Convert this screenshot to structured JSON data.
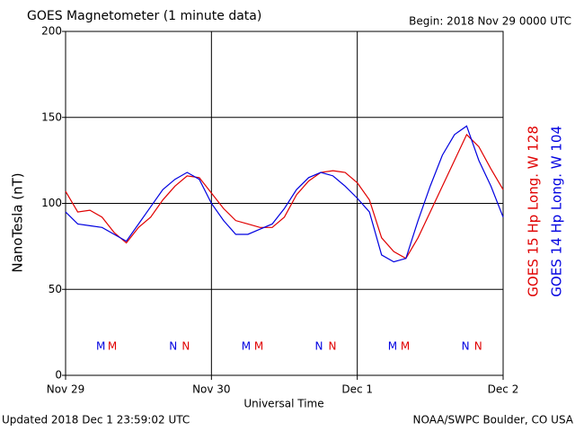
{
  "chart_data": {
    "type": "line",
    "title": "GOES Magnetometer (1 minute data)",
    "subtitle": "Begin:  2018 Nov 29 0000 UTC",
    "ylabel": "NanoTesla (nT)",
    "xlabel": "Universal Time",
    "footer_left": "Updated 2018 Dec  1 23:59:02 UTC",
    "footer_right": "NOAA/SWPC Boulder, CO USA",
    "xlim": [
      0,
      72
    ],
    "xticks": [
      {
        "value": 0,
        "label": "Nov 29"
      },
      {
        "value": 24,
        "label": "Nov 30"
      },
      {
        "value": 48,
        "label": "Dec 1"
      },
      {
        "value": 72,
        "label": "Dec 2"
      }
    ],
    "ylim": [
      0,
      200
    ],
    "yticks": [
      0,
      50,
      100,
      150,
      200
    ],
    "grid": true,
    "x": [
      0,
      2,
      4,
      6,
      8,
      10,
      12,
      14,
      16,
      18,
      20,
      22,
      24,
      26,
      28,
      30,
      32,
      34,
      36,
      38,
      40,
      42,
      44,
      46,
      48,
      50,
      52,
      54,
      56,
      58,
      60,
      62,
      64,
      66,
      68,
      70,
      72
    ],
    "series": [
      {
        "name": "GOES 15 Hp  Long. W 128",
        "color": "#e00000",
        "values": [
          107,
          95,
          96,
          92,
          83,
          77,
          86,
          92,
          102,
          110,
          116,
          115,
          106,
          97,
          90,
          88,
          86,
          86,
          92,
          105,
          113,
          118,
          119,
          118,
          112,
          102,
          80,
          72,
          68,
          80,
          95,
          110,
          125,
          140,
          133,
          120,
          108
        ]
      },
      {
        "name": "GOES 14 Hp  Long. W 104",
        "color": "#0000e0",
        "values": [
          95,
          88,
          87,
          86,
          82,
          78,
          88,
          98,
          108,
          114,
          118,
          114,
          100,
          90,
          82,
          82,
          85,
          88,
          97,
          108,
          115,
          118,
          116,
          110,
          103,
          95,
          70,
          66,
          68,
          90,
          110,
          128,
          140,
          145,
          125,
          110,
          92
        ]
      }
    ],
    "markers": [
      {
        "label": "M",
        "series": 1,
        "x": 5.8
      },
      {
        "label": "M",
        "series": 0,
        "x": 7.7
      },
      {
        "label": "N",
        "series": 1,
        "x": 17.7
      },
      {
        "label": "N",
        "series": 0,
        "x": 19.8
      },
      {
        "label": "M",
        "series": 1,
        "x": 29.7
      },
      {
        "label": "M",
        "series": 0,
        "x": 31.8
      },
      {
        "label": "N",
        "series": 1,
        "x": 41.7
      },
      {
        "label": "N",
        "series": 0,
        "x": 43.9
      },
      {
        "label": "M",
        "series": 1,
        "x": 53.8
      },
      {
        "label": "M",
        "series": 0,
        "x": 55.9
      },
      {
        "label": "N",
        "series": 1,
        "x": 65.8
      },
      {
        "label": "N",
        "series": 0,
        "x": 67.9
      }
    ]
  }
}
